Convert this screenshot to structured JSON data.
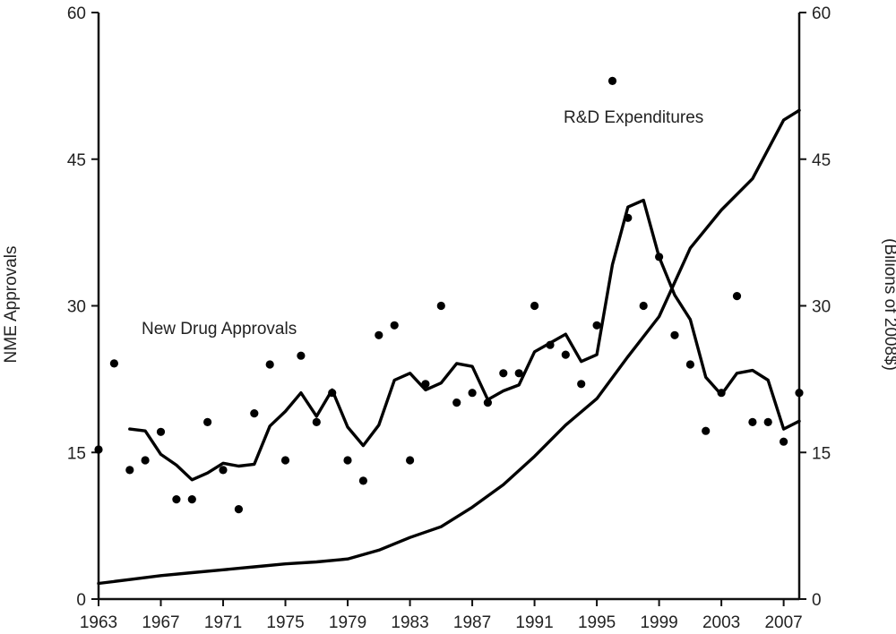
{
  "chart_data": {
    "type": "line",
    "x_ticks": [
      "1963",
      "1967",
      "1971",
      "1975",
      "1979",
      "1983",
      "1987",
      "1991",
      "1995",
      "1999",
      "2003",
      "2007"
    ],
    "y_left": {
      "label": "NME Approvals",
      "range": [
        0,
        60
      ],
      "ticks": [
        0,
        15,
        30,
        45,
        60
      ]
    },
    "y_right": {
      "label": "(Bilions of 2008$)",
      "range": [
        0,
        60
      ],
      "ticks": [
        0,
        15,
        30,
        45,
        60
      ]
    },
    "xlim": [
      1963,
      2008
    ],
    "annotations": {
      "new_drug_approvals": "New Drug Approvals",
      "rd_expenditures": "R&D Expenditures"
    },
    "series": [
      {
        "name": "New Drug Approvals",
        "kind": "scatter",
        "x": [
          1963,
          1964,
          1965,
          1966,
          1967,
          1968,
          1969,
          1970,
          1971,
          1972,
          1973,
          1974,
          1975,
          1976,
          1977,
          1978,
          1979,
          1980,
          1981,
          1982,
          1983,
          1984,
          1985,
          1986,
          1987,
          1988,
          1989,
          1990,
          1991,
          1992,
          1993,
          1994,
          1995,
          1996,
          1997,
          1998,
          1999,
          2000,
          2001,
          2002,
          2003,
          2004,
          2005,
          2006,
          2007,
          2008
        ],
        "y": [
          15.3,
          24.1,
          13.2,
          14.2,
          17.1,
          10.2,
          10.2,
          18.1,
          13.2,
          9.2,
          19,
          24,
          14.2,
          24.9,
          18.1,
          21.1,
          14.2,
          12.1,
          27,
          28,
          14.2,
          22,
          30,
          20.1,
          21.1,
          20.1,
          23.1,
          23.1,
          30,
          26,
          25,
          22,
          28,
          53,
          39,
          30,
          35,
          27,
          24,
          17.2,
          21.1,
          31,
          18.1,
          18.1,
          16.1,
          21.1
        ]
      },
      {
        "name": "New Drug Approvals (moving average)",
        "kind": "line",
        "x": [
          1965,
          1966,
          1967,
          1968,
          1969,
          1970,
          1971,
          1972,
          1973,
          1974,
          1975,
          1976,
          1977,
          1978,
          1979,
          1980,
          1981,
          1982,
          1983,
          1984,
          1985,
          1986,
          1987,
          1988,
          1989,
          1990,
          1991,
          1992,
          1993,
          1994,
          1995,
          1996,
          1997,
          1998,
          1999,
          2000,
          2001,
          2002,
          2003,
          2004,
          2005,
          2006,
          2007,
          2008
        ],
        "y": [
          17.4,
          17.2,
          14.8,
          13.7,
          12.2,
          12.9,
          13.9,
          13.6,
          13.8,
          17.7,
          19.2,
          21.1,
          18.7,
          21.4,
          17.6,
          15.7,
          17.8,
          22.4,
          23.1,
          21.4,
          22.1,
          24.1,
          23.8,
          20.4,
          21.3,
          21.9,
          25.3,
          26.2,
          27.1,
          24.3,
          25,
          34.2,
          40.1,
          40.8,
          35,
          31.1,
          28.6,
          22.7,
          20.9,
          23.1,
          23.4,
          22.4,
          17.4,
          18.2
        ]
      },
      {
        "name": "R&D Expenditures",
        "kind": "line",
        "x": [
          1963,
          1965,
          1967,
          1969,
          1971,
          1973,
          1975,
          1977,
          1979,
          1981,
          1983,
          1985,
          1987,
          1989,
          1991,
          1993,
          1995,
          1997,
          1999,
          2001,
          2003,
          2005,
          2007,
          2008
        ],
        "y": [
          1.6,
          2,
          2.4,
          2.7,
          3,
          3.3,
          3.6,
          3.8,
          4.1,
          5,
          6.3,
          7.4,
          9.4,
          11.7,
          14.6,
          17.8,
          20.5,
          24.8,
          28.9,
          35.9,
          39.8,
          43,
          49,
          50
        ]
      }
    ]
  }
}
